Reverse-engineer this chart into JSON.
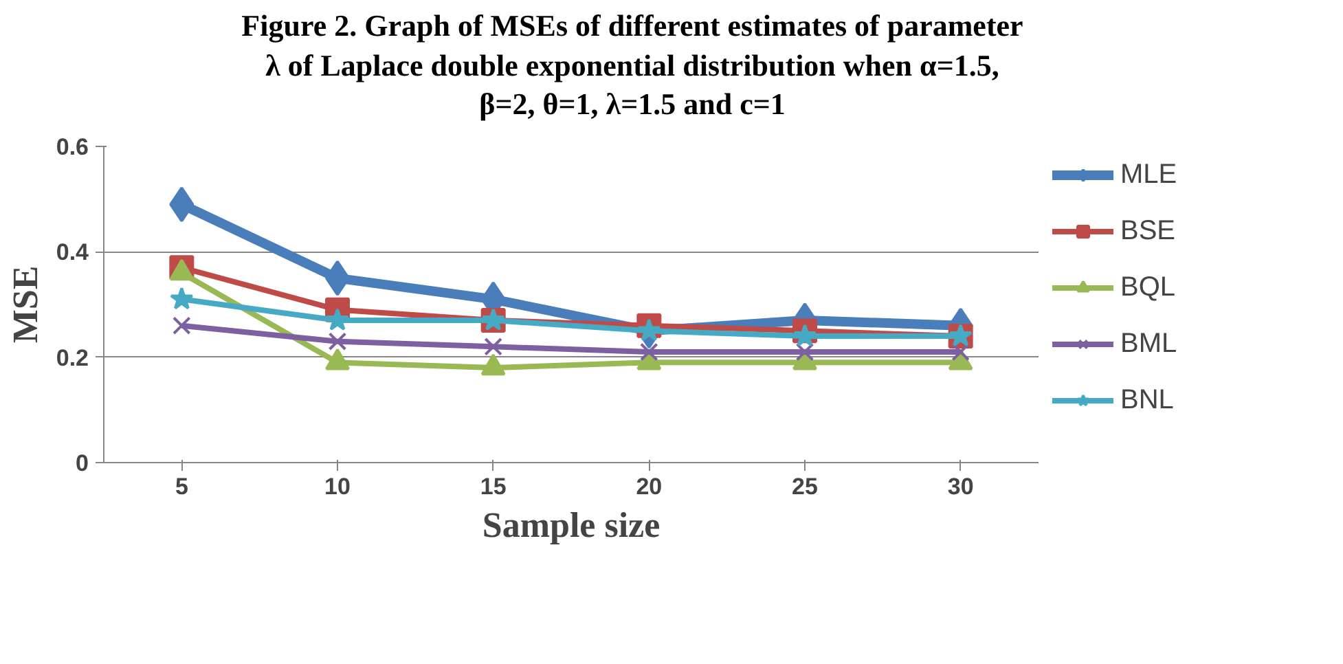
{
  "chart_data": {
    "type": "line",
    "title": "Figure 2. Graph of MSEs of different estimates of parameter\nλ of Laplace double exponential distribution when α=1.5,\nβ=2, θ=1, λ=1.5 and c=1",
    "xlabel": "Sample size",
    "ylabel": "MSE",
    "categories": [
      "5",
      "10",
      "15",
      "20",
      "25",
      "30"
    ],
    "series": [
      {
        "name": "MLE",
        "color": "#4a7ebb",
        "marker": "diamond",
        "values": [
          0.49,
          0.35,
          0.31,
          0.25,
          0.27,
          0.26
        ]
      },
      {
        "name": "BSE",
        "color": "#be4b48",
        "marker": "square",
        "values": [
          0.37,
          0.29,
          0.27,
          0.26,
          0.25,
          0.24
        ]
      },
      {
        "name": "BQL",
        "color": "#98b954",
        "marker": "triangle",
        "values": [
          0.36,
          0.19,
          0.18,
          0.19,
          0.19,
          0.19
        ]
      },
      {
        "name": "BML",
        "color": "#7d60a0",
        "marker": "cross",
        "values": [
          0.26,
          0.23,
          0.22,
          0.21,
          0.21,
          0.21
        ]
      },
      {
        "name": "BNL",
        "color": "#46aac5",
        "marker": "star",
        "values": [
          0.31,
          0.27,
          0.27,
          0.25,
          0.24,
          0.24
        ]
      }
    ],
    "ylim": [
      0,
      0.6
    ],
    "yticks": [
      0,
      0.2,
      0.4,
      0.6
    ],
    "grid": "y",
    "legend": "right",
    "line_style": "solid"
  }
}
